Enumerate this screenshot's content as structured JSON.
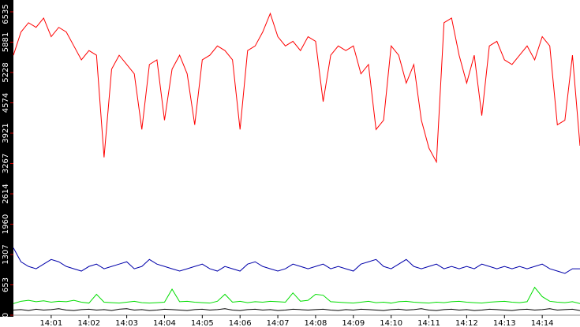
{
  "chart_data": {
    "type": "line",
    "x": [
      0,
      0.2,
      0.4,
      0.6,
      0.8,
      1,
      1.2,
      1.4,
      1.6,
      1.8,
      2,
      2.2,
      2.4,
      2.6,
      2.8,
      3,
      3.2,
      3.4,
      3.6,
      3.8,
      4,
      4.2,
      4.4,
      4.6,
      4.8,
      5,
      5.2,
      5.4,
      5.6,
      5.8,
      6,
      6.2,
      6.4,
      6.6,
      6.8,
      7,
      7.2,
      7.4,
      7.6,
      7.8,
      8,
      8.2,
      8.4,
      8.6,
      8.8,
      9,
      9.2,
      9.4,
      9.6,
      9.8,
      10,
      10.2,
      10.4,
      10.6,
      10.8,
      11,
      11.2,
      11.4,
      11.6,
      11.8,
      12,
      12.2,
      12.4,
      12.6,
      12.8,
      13,
      13.2,
      13.4,
      13.6,
      13.8,
      14,
      14.2,
      14.4,
      14.6,
      14.8,
      15
    ],
    "series": [
      {
        "color": "#ff0000",
        "values": [
          5600,
          6100,
          6300,
          6200,
          6400,
          6000,
          6200,
          6100,
          5800,
          5500,
          5700,
          5600,
          3400,
          5300,
          5600,
          5400,
          5200,
          4000,
          5400,
          5500,
          4200,
          5300,
          5600,
          5200,
          4100,
          5500,
          5600,
          5800,
          5700,
          5500,
          4000,
          5700,
          5800,
          6100,
          6500,
          6000,
          5800,
          5900,
          5700,
          6000,
          5900,
          4600,
          5600,
          5800,
          5700,
          5800,
          5200,
          5400,
          4000,
          4200,
          5800,
          5600,
          5000,
          5400,
          4200,
          3600,
          3300,
          6300,
          6400,
          5600,
          5000,
          5600,
          4300,
          5800,
          5900,
          5500,
          5400,
          5600,
          5800,
          5500,
          6000,
          5800,
          4100,
          4200,
          5600,
          3650
        ]
      },
      {
        "color": "#0000aa",
        "values": [
          1450,
          1150,
          1050,
          1000,
          1100,
          1200,
          1150,
          1050,
          1000,
          950,
          1050,
          1100,
          1000,
          1050,
          1100,
          1150,
          1000,
          1050,
          1200,
          1100,
          1050,
          1000,
          950,
          1000,
          1050,
          1100,
          1000,
          950,
          1050,
          1000,
          950,
          1100,
          1150,
          1050,
          1000,
          950,
          1000,
          1100,
          1050,
          1000,
          1050,
          1100,
          1000,
          1050,
          1000,
          950,
          1100,
          1150,
          1200,
          1050,
          1000,
          1100,
          1200,
          1050,
          1000,
          1050,
          1100,
          1000,
          1050,
          1000,
          1050,
          1000,
          1100,
          1050,
          1000,
          1050,
          1000,
          1050,
          1000,
          1050,
          1100,
          1000,
          950,
          900,
          1000,
          1000
        ]
      },
      {
        "color": "#00dd00",
        "values": [
          250,
          300,
          320,
          290,
          310,
          280,
          300,
          290,
          320,
          280,
          260,
          450,
          280,
          270,
          260,
          280,
          300,
          270,
          260,
          270,
          280,
          560,
          290,
          300,
          280,
          270,
          260,
          300,
          450,
          280,
          300,
          270,
          290,
          280,
          300,
          290,
          280,
          480,
          300,
          320,
          450,
          430,
          290,
          280,
          270,
          260,
          280,
          300,
          270,
          280,
          260,
          290,
          300,
          280,
          270,
          260,
          280,
          270,
          290,
          300,
          280,
          270,
          260,
          280,
          290,
          300,
          280,
          270,
          290,
          600,
          400,
          300,
          280,
          270,
          290,
          250
        ]
      },
      {
        "color": "#000000",
        "values": [
          110,
          120,
          100,
          130,
          110,
          120,
          140,
          110,
          100,
          120,
          130,
          110,
          120,
          100,
          130,
          140,
          110,
          120,
          100,
          110,
          130,
          120,
          110,
          100,
          120,
          130,
          110,
          120,
          140,
          110,
          100,
          120,
          130,
          110,
          120,
          100,
          110,
          130,
          120,
          110,
          120,
          130,
          110,
          100,
          120,
          110,
          130,
          120,
          110,
          100,
          120,
          130,
          110,
          120,
          140,
          110,
          100,
          120,
          130,
          110,
          120,
          100,
          110,
          130,
          120,
          110,
          100,
          120,
          130,
          110,
          120,
          140,
          110,
          120,
          130,
          100
        ]
      }
    ],
    "xlim": [
      0,
      15
    ],
    "xticks": [
      {
        "value": 1,
        "label": "14:01"
      },
      {
        "value": 2,
        "label": "14:02"
      },
      {
        "value": 3,
        "label": "14:03"
      },
      {
        "value": 4,
        "label": "14:04"
      },
      {
        "value": 5,
        "label": "14:05"
      },
      {
        "value": 6,
        "label": "14:06"
      },
      {
        "value": 7,
        "label": "14:07"
      },
      {
        "value": 8,
        "label": "14:08"
      },
      {
        "value": 9,
        "label": "14:09"
      },
      {
        "value": 10,
        "label": "14:10"
      },
      {
        "value": 11,
        "label": "14:11"
      },
      {
        "value": 12,
        "label": "14:12"
      },
      {
        "value": 13,
        "label": "14:13"
      },
      {
        "value": 14,
        "label": "14:14"
      }
    ],
    "ylim": [
      0,
      6535
    ],
    "yticks": [
      0,
      653,
      1307,
      1960,
      2614,
      3267,
      3921,
      4574,
      5228,
      5881,
      6535
    ]
  }
}
